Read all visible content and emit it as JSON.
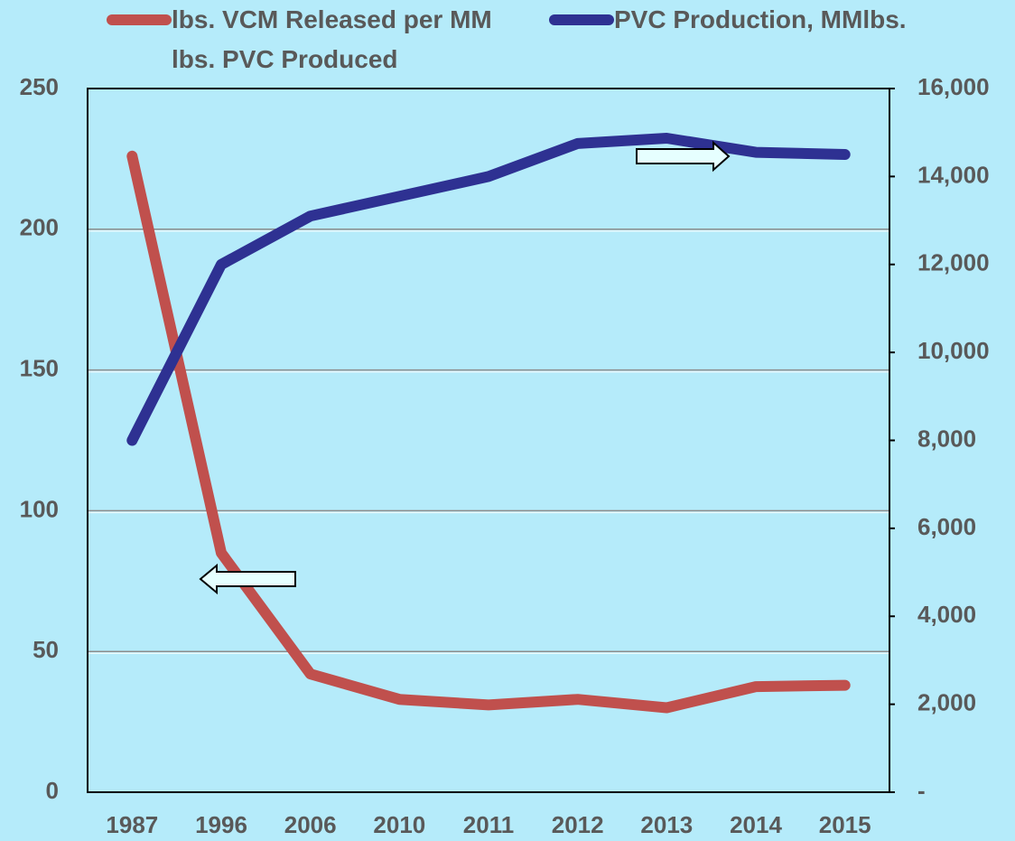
{
  "chart_data": {
    "type": "line",
    "categories": [
      "1987",
      "1996",
      "2006",
      "2010",
      "2011",
      "2012",
      "2013",
      "2014",
      "2015"
    ],
    "series": [
      {
        "name": "lbs. VCM Released per MM lbs. PVC Produced",
        "color": "#c0504d",
        "axis": "y",
        "values": [
          226,
          85,
          42,
          33,
          31,
          33,
          30,
          37.5,
          38
        ]
      },
      {
        "name": "PVC Production, MMlbs.",
        "color": "#2e3192",
        "axis": "y2",
        "values": [
          8000,
          12000,
          13100,
          13550,
          14000,
          14750,
          14870,
          14550,
          14500
        ]
      }
    ],
    "ylim": [
      0,
      250
    ],
    "yticks": [
      0,
      50,
      100,
      150,
      200,
      250
    ],
    "y2lim": [
      0,
      16000
    ],
    "y2ticks": [
      {
        "value": 0,
        "label": "-"
      },
      {
        "value": 2000,
        "label": "2,000"
      },
      {
        "value": 4000,
        "label": "4,000"
      },
      {
        "value": 6000,
        "label": "6,000"
      },
      {
        "value": 8000,
        "label": "8,000"
      },
      {
        "value": 10000,
        "label": "10,000"
      },
      {
        "value": 12000,
        "label": "12,000"
      },
      {
        "value": 14000,
        "label": "14,000"
      },
      {
        "value": 16000,
        "label": "16,000"
      }
    ],
    "grid": true,
    "legend": "top"
  }
}
